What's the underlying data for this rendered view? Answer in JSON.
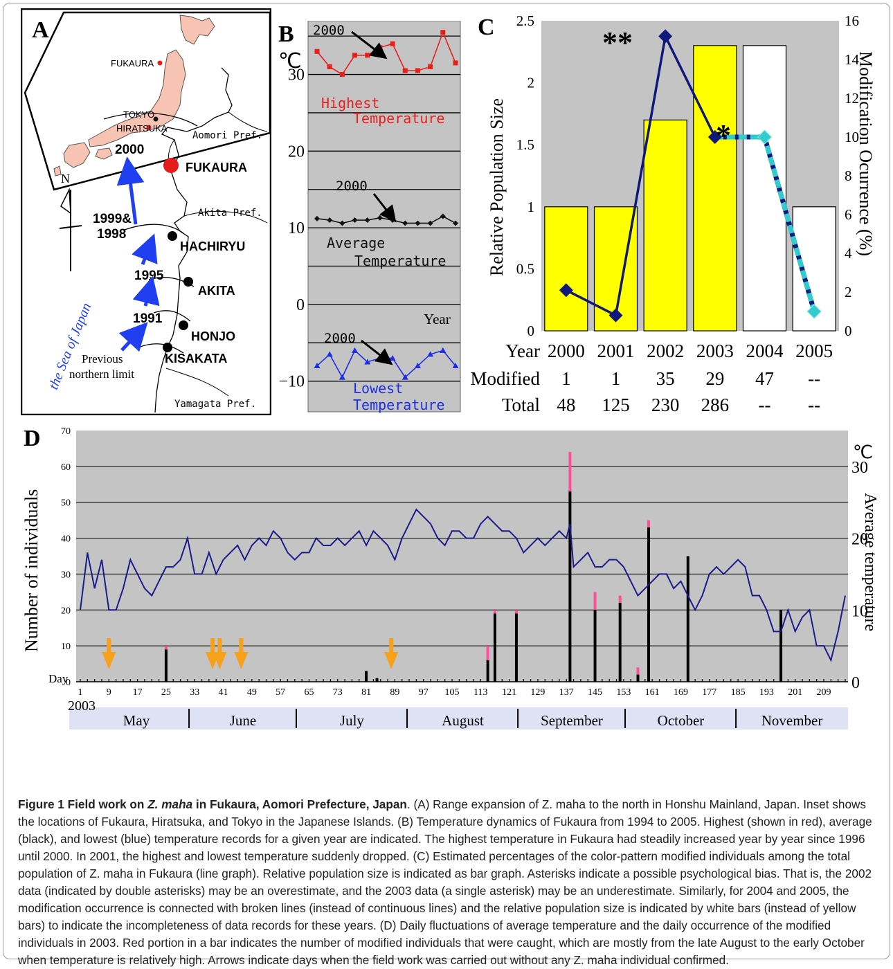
{
  "panel_a": {
    "label": "A",
    "inset_places": [
      "FUKAURA",
      "TOKYO",
      "HIRATSUKA"
    ],
    "prefectures": [
      "Aomori Pref.",
      "Akita Pref.",
      "Yamagata Pref."
    ],
    "compass": "N",
    "sea_label": "the Sea of Japan",
    "sites": [
      {
        "name": "FUKAURA",
        "year": "2000"
      },
      {
        "name": "HACHIRYU",
        "year_line1": "1999&",
        "year_line2": "1998"
      },
      {
        "name": "AKITA",
        "year": "1995"
      },
      {
        "name": "HONJO",
        "year": "1991"
      },
      {
        "name": "KISAKATA"
      }
    ],
    "previous_limit_line1": "Previous",
    "previous_limit_line2": "northern limit",
    "colors": {
      "arrow": "#1f3ff0",
      "fukaura": "#e51c1c",
      "land": "#f7c4b3"
    }
  },
  "panel_b": {
    "label": "B",
    "unit": "℃",
    "ticks": [
      "30",
      "20",
      "10",
      "0",
      "−10"
    ],
    "year_label": "Year",
    "annotation": "2000",
    "highest_label_1": "Highest",
    "highest_label_2": "Temperature",
    "average_label_1": "Average",
    "average_label_2": "Temperature",
    "lowest_label_1": "Lowest",
    "lowest_label_2": "Temperature",
    "colors": {
      "highest": "#e8201c",
      "average": "#111111",
      "lowest": "#1d2ee8",
      "background": "#c4c4c4"
    }
  },
  "panel_c": {
    "label": "C",
    "y_left_label": "Relative Population Size",
    "y_right_label": "Modification Ocurrence (%)",
    "left_ticks": [
      "2.5",
      "2",
      "1.5",
      "1",
      "0.5",
      "0"
    ],
    "right_ticks": [
      "16",
      "14",
      "12",
      "10",
      "8",
      "6",
      "4",
      "2",
      "0"
    ],
    "double_asterisk": "**",
    "single_asterisk": "*",
    "table": {
      "year_label": "Year",
      "modified_label": "Modified",
      "total_label": "Total",
      "years": [
        "2000",
        "2001",
        "2002",
        "2003",
        "2004",
        "2005"
      ],
      "modified": [
        "1",
        "1",
        "35",
        "29",
        "47",
        "--"
      ],
      "total": [
        "48",
        "125",
        "230",
        "286",
        "--",
        "--"
      ]
    },
    "colors": {
      "bar_complete": "#ffff00",
      "bar_incomplete": "#ffffff",
      "line": "#10187a",
      "dashed": "#33cccc"
    }
  },
  "panel_d": {
    "label": "D",
    "y_left_label": "Number of individuals",
    "y_right_label": "Average temperature",
    "unit": "℃",
    "left_ticks": [
      "70",
      "60",
      "50",
      "40",
      "30",
      "20",
      "10",
      "0"
    ],
    "right_ticks": [
      "30",
      "20",
      "10",
      "0"
    ],
    "day_label": "Day",
    "day_ticks": [
      "1",
      "9",
      "17",
      "25",
      "33",
      "41",
      "49",
      "57",
      "65",
      "73",
      "81",
      "89",
      "97",
      "105",
      "113",
      "121",
      "129",
      "137",
      "145",
      "153",
      "161",
      "169",
      "177",
      "185",
      "193",
      "201",
      "209"
    ],
    "year": "2003",
    "months": [
      "May",
      "June",
      "July",
      "August",
      "September",
      "October",
      "November"
    ],
    "colors": {
      "line": "#1a1a8c",
      "bar": "#000000",
      "modified": "#ff4f9a",
      "arrow": "#f7a11b",
      "background": "#c4c4c4",
      "month_band": "#dfe1f5"
    }
  },
  "chart_data": [
    {
      "type": "line",
      "panel": "B",
      "ylabel": "℃",
      "xlabel": "Year",
      "ylim": [
        -14,
        37
      ],
      "series": [
        {
          "name": "Highest Temperature",
          "values": [
            33,
            31,
            30,
            32.5,
            32.5,
            33.5,
            34,
            30.5,
            30.5,
            31,
            35.5,
            31.5
          ]
        },
        {
          "name": "Average Temperature",
          "values": [
            11.2,
            11,
            10.6,
            11,
            11,
            11.3,
            11,
            10.6,
            10.6,
            10.6,
            11.5,
            10.6
          ]
        },
        {
          "name": "Lowest Temperature",
          "values": [
            -8,
            -6.5,
            -9.5,
            -6,
            -7.5,
            -7,
            -7,
            -9.5,
            -8,
            -6.5,
            -6,
            -8
          ]
        }
      ]
    },
    {
      "type": "bar",
      "panel": "C",
      "categories": [
        "2000",
        "2001",
        "2002",
        "2003",
        "2004",
        "2005"
      ],
      "ylabel": "Relative Population Size",
      "ylim": [
        0,
        2.5
      ],
      "series": [
        {
          "name": "Relative Population Size",
          "values": [
            1,
            1,
            1.7,
            2.3,
            2.3,
            1
          ]
        },
        {
          "name": "Modification Ocurrence (%)",
          "axis": "right",
          "ylim": [
            0,
            16
          ],
          "values": [
            2.1,
            0.8,
            15.2,
            10,
            10,
            1
          ]
        }
      ]
    },
    {
      "type": "line",
      "panel": "D",
      "xlabel": "Day",
      "ylabel": "Number of individuals",
      "ylim": [
        0,
        70
      ],
      "series": [
        {
          "name": "Average temperature",
          "axis": "right",
          "ylim": [
            0,
            35
          ],
          "knots": [
            [
              1,
              10
            ],
            [
              3,
              18
            ],
            [
              5,
              13
            ],
            [
              7,
              17
            ],
            [
              9,
              10
            ],
            [
              11,
              10
            ],
            [
              13,
              13
            ],
            [
              15,
              17
            ],
            [
              17,
              15
            ],
            [
              19,
              13
            ],
            [
              21,
              12
            ],
            [
              23,
              14
            ],
            [
              25,
              16
            ],
            [
              27,
              16
            ],
            [
              29,
              17
            ],
            [
              31,
              20
            ],
            [
              33,
              15
            ],
            [
              35,
              15
            ],
            [
              37,
              18
            ],
            [
              39,
              15
            ],
            [
              41,
              17
            ],
            [
              43,
              18
            ],
            [
              45,
              19
            ],
            [
              47,
              17
            ],
            [
              49,
              19
            ],
            [
              51,
              20
            ],
            [
              53,
              19
            ],
            [
              55,
              21
            ],
            [
              57,
              20
            ],
            [
              59,
              18
            ],
            [
              61,
              17
            ],
            [
              63,
              18
            ],
            [
              65,
              18
            ],
            [
              67,
              20
            ],
            [
              69,
              19
            ],
            [
              71,
              19
            ],
            [
              73,
              20
            ],
            [
              75,
              19
            ],
            [
              77,
              20
            ],
            [
              79,
              21
            ],
            [
              81,
              19
            ],
            [
              83,
              21
            ],
            [
              85,
              20
            ],
            [
              87,
              19
            ],
            [
              89,
              17
            ],
            [
              91,
              20
            ],
            [
              93,
              22
            ],
            [
              95,
              24
            ],
            [
              97,
              23
            ],
            [
              99,
              22
            ],
            [
              101,
              20
            ],
            [
              103,
              19
            ],
            [
              105,
              21
            ],
            [
              107,
              21
            ],
            [
              109,
              20
            ],
            [
              111,
              20
            ],
            [
              113,
              22
            ],
            [
              115,
              23
            ],
            [
              117,
              22
            ],
            [
              119,
              21
            ],
            [
              121,
              21
            ],
            [
              123,
              20
            ],
            [
              125,
              18
            ],
            [
              127,
              19
            ],
            [
              129,
              20
            ],
            [
              131,
              19
            ],
            [
              133,
              20
            ],
            [
              135,
              21
            ],
            [
              137,
              20
            ],
            [
              138,
              22
            ],
            [
              139,
              16
            ],
            [
              141,
              17
            ],
            [
              143,
              18
            ],
            [
              145,
              16
            ],
            [
              147,
              16
            ],
            [
              149,
              17
            ],
            [
              151,
              17
            ],
            [
              153,
              16
            ],
            [
              155,
              14
            ],
            [
              157,
              12
            ],
            [
              159,
              13
            ],
            [
              161,
              14
            ],
            [
              163,
              15
            ],
            [
              165,
              15
            ],
            [
              167,
              13
            ],
            [
              169,
              14
            ],
            [
              171,
              12
            ],
            [
              173,
              10
            ],
            [
              175,
              12
            ],
            [
              177,
              15
            ],
            [
              179,
              16
            ],
            [
              181,
              15
            ],
            [
              183,
              16
            ],
            [
              185,
              17
            ],
            [
              187,
              16
            ],
            [
              189,
              12
            ],
            [
              191,
              12
            ],
            [
              193,
              10
            ],
            [
              195,
              7
            ],
            [
              197,
              7
            ],
            [
              199,
              10
            ],
            [
              201,
              7
            ],
            [
              203,
              9
            ],
            [
              205,
              10
            ],
            [
              207,
              5
            ],
            [
              209,
              5
            ],
            [
              211,
              3
            ],
            [
              213,
              7
            ],
            [
              215,
              12
            ]
          ]
        },
        {
          "name": "Number of individuals",
          "bars": [
            {
              "day": 25,
              "total": 10,
              "modified": 1
            },
            {
              "day": 81,
              "total": 3,
              "modified": 0
            },
            {
              "day": 84,
              "total": 1,
              "modified": 0
            },
            {
              "day": 115,
              "total": 10,
              "modified": 4
            },
            {
              "day": 117,
              "total": 20,
              "modified": 1
            },
            {
              "day": 123,
              "total": 20,
              "modified": 1
            },
            {
              "day": 138,
              "total": 64,
              "modified": 11
            },
            {
              "day": 145,
              "total": 25,
              "modified": 5
            },
            {
              "day": 152,
              "total": 24,
              "modified": 2
            },
            {
              "day": 157,
              "total": 4,
              "modified": 2
            },
            {
              "day": 160,
              "total": 45,
              "modified": 2
            },
            {
              "day": 171,
              "total": 35,
              "modified": 0
            },
            {
              "day": 197,
              "total": 20,
              "modified": 0
            }
          ]
        },
        {
          "name": "Arrows",
          "days": [
            9,
            38,
            40,
            46,
            88
          ]
        }
      ]
    }
  ],
  "caption": {
    "title_1": "Figure 1 Field work on",
    "title_species": "Z. maha",
    "title_2": "in Fukaura, Aomori Prefecture, Japan",
    "body": "(A) Range expansion of Z. maha to the north in Honshu Mainland, Japan. Inset shows the locations of Fukaura, Hiratsuka, and Tokyo in the Japanese Islands. (B) Temperature dynamics of Fukaura from 1994 to 2005. Highest (shown in red), average (black), and lowest (blue) temperature records for a given year are indicated. The highest temperature in Fukaura had steadily increased year by year since 1996 until 2000. In 2001, the highest and lowest temperature suddenly dropped. (C) Estimated percentages of the color-pattern modified individuals among the total population of Z. maha in Fukaura (line graph). Relative population size is indicated as bar graph. Asterisks indicate a possible psychological bias. That is, the 2002 data (indicated by double asterisks) may be an overestimate, and the 2003 data (a single asterisk) may be an underestimate. Similarly, for 2004 and 2005, the modification occurrence is connected with broken lines (instead of continuous lines) and the relative population size is indicated by white bars (instead of yellow bars) to indicate the incompleteness of data records for these years. (D) Daily fluctuations of average temperature and the daily occurrence of the modified individuals in 2003. Red portion in a bar indicates the number of modified individuals that were caught, which are mostly from the late August to the early October when temperature is relatively high. Arrows indicate days when the field work was carried out without any Z. maha individual confirmed."
  }
}
